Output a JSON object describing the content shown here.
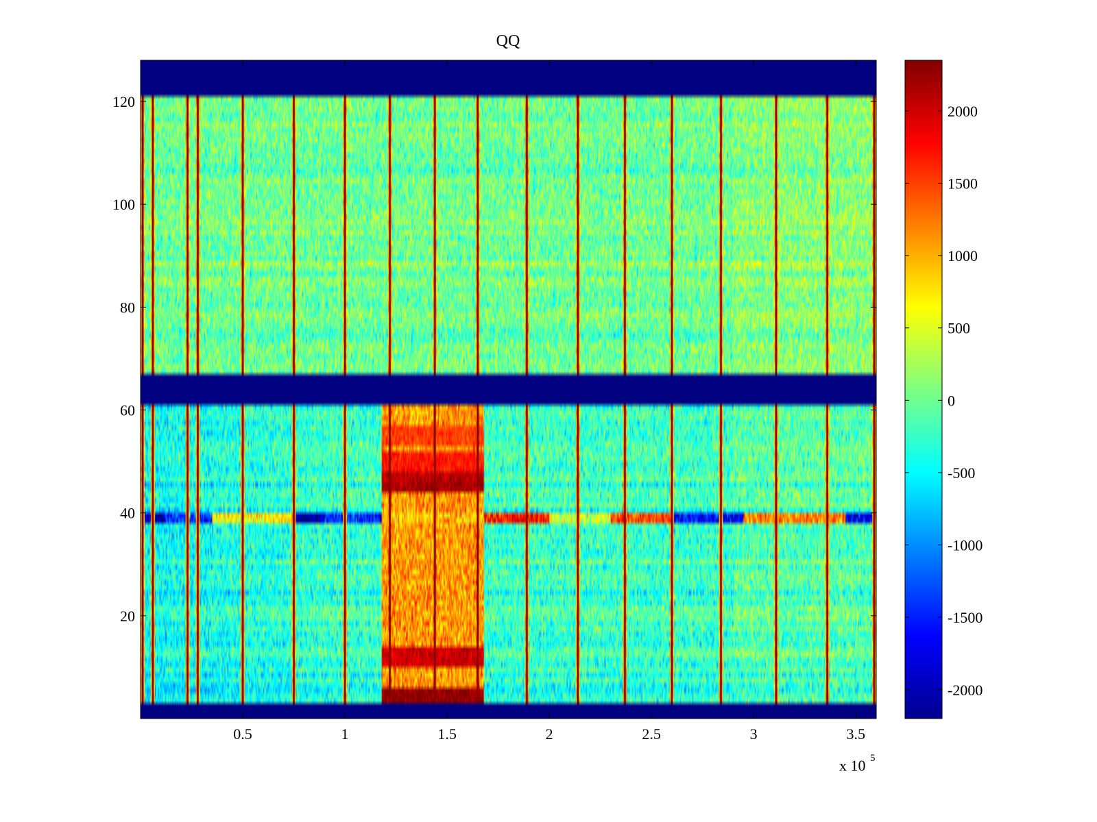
{
  "chart_data": {
    "type": "heatmap",
    "title": "QQ",
    "xlabel": "",
    "ylabel": "",
    "x_multiplier_label": {
      "base": "x 10",
      "exponent": "5"
    },
    "xlim": [
      0,
      3.6
    ],
    "ylim": [
      0,
      128
    ],
    "x_ticks": [
      {
        "value": 0.5,
        "label": "0.5"
      },
      {
        "value": 1,
        "label": "1"
      },
      {
        "value": 1.5,
        "label": "1.5"
      },
      {
        "value": 2,
        "label": "2"
      },
      {
        "value": 2.5,
        "label": "2.5"
      },
      {
        "value": 3,
        "label": "3"
      },
      {
        "value": 3.5,
        "label": "3.5"
      }
    ],
    "y_ticks": [
      {
        "value": 20,
        "label": "20"
      },
      {
        "value": 40,
        "label": "40"
      },
      {
        "value": 60,
        "label": "60"
      },
      {
        "value": 80,
        "label": "80"
      },
      {
        "value": 100,
        "label": "100"
      },
      {
        "value": 120,
        "label": "120"
      }
    ],
    "colorbar": {
      "colormap": "jet",
      "clim": [
        -2200,
        2350
      ],
      "ticks": [
        {
          "value": 2000,
          "label": "2000"
        },
        {
          "value": 1500,
          "label": "1500"
        },
        {
          "value": 1000,
          "label": "1000"
        },
        {
          "value": 500,
          "label": "500"
        },
        {
          "value": 0,
          "label": "0"
        },
        {
          "value": -500,
          "label": "-500"
        },
        {
          "value": -1000,
          "label": "-1000"
        },
        {
          "value": -1500,
          "label": "-1500"
        },
        {
          "value": -2000,
          "label": "-2000"
        }
      ]
    },
    "masked_row_bands": [
      {
        "y_from": 0,
        "y_to": 3,
        "value": -2200
      },
      {
        "y_from": 61.5,
        "y_to": 67.5,
        "value": -2200
      },
      {
        "y_from": 121.5,
        "y_to": 128,
        "value": -2200
      }
    ],
    "background_level": {
      "lower_block": -250,
      "upper_block": 0,
      "noise": 450
    },
    "vertical_spikes_x": [
      0.01,
      0.06,
      0.23,
      0.28,
      0.5,
      0.75,
      1.0,
      1.22,
      1.44,
      1.65,
      1.89,
      2.14,
      2.37,
      2.6,
      2.84,
      3.11,
      3.36,
      3.59
    ],
    "hot_region": {
      "x_from": 1.18,
      "x_to": 1.68,
      "y_from": 3,
      "y_to": 61.5,
      "value": 1100
    },
    "hot_rows": [
      {
        "y": 4,
        "value": 2300
      },
      {
        "y": 12,
        "value": 2000
      },
      {
        "y": 46,
        "value": 2200
      },
      {
        "y": 48,
        "value": 2100
      },
      {
        "y": 50,
        "value": 1700
      },
      {
        "y": 55,
        "value": 1500
      }
    ],
    "line_row": {
      "y": 39,
      "segments": [
        {
          "x_from": 0.0,
          "x_to": 0.12,
          "value": -2000
        },
        {
          "x_from": 0.12,
          "x_to": 0.35,
          "value": -1400
        },
        {
          "x_from": 0.35,
          "x_to": 0.75,
          "value": 700
        },
        {
          "x_from": 0.75,
          "x_to": 0.9,
          "value": -2100
        },
        {
          "x_from": 0.9,
          "x_to": 1.18,
          "value": -1500
        },
        {
          "x_from": 1.18,
          "x_to": 1.68,
          "value": 900
        },
        {
          "x_from": 1.68,
          "x_to": 2.0,
          "value": 1700
        },
        {
          "x_from": 2.0,
          "x_to": 2.3,
          "value": 400
        },
        {
          "x_from": 2.3,
          "x_to": 2.6,
          "value": 1500
        },
        {
          "x_from": 2.6,
          "x_to": 2.95,
          "value": -1600
        },
        {
          "x_from": 2.95,
          "x_to": 3.45,
          "value": 1200
        },
        {
          "x_from": 3.45,
          "x_to": 3.6,
          "value": -1700
        }
      ]
    }
  }
}
